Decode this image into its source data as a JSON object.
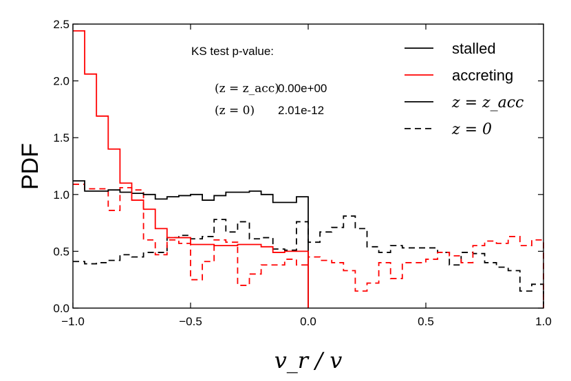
{
  "chart_data": {
    "type": "line",
    "title": "",
    "xlabel": "v_r / v",
    "ylabel": "PDF",
    "xlim": [
      -1.0,
      1.0
    ],
    "ylim": [
      0.0,
      2.5
    ],
    "xticks": [
      -1.0,
      -0.5,
      0.0,
      0.5,
      1.0
    ],
    "xtick_labels": [
      "−1.0",
      "−0.5",
      "0.0",
      "0.5",
      "1.0"
    ],
    "yticks": [
      0.0,
      0.5,
      1.0,
      1.5,
      2.0,
      2.5
    ],
    "ytick_labels": [
      "0.0",
      "0.5",
      "1.0",
      "1.5",
      "2.0",
      "2.5"
    ],
    "grid": false,
    "series": [
      {
        "name": "stalled z=z_acc",
        "color": "#000000",
        "dash": "solid",
        "edges": [
          -1.0,
          -0.95,
          -0.9,
          -0.85,
          -0.8,
          -0.75,
          -0.7,
          -0.65,
          -0.6,
          -0.55,
          -0.5,
          -0.45,
          -0.4,
          -0.35,
          -0.3,
          -0.25,
          -0.2,
          -0.15,
          -0.1,
          -0.05,
          0.0
        ],
        "values": [
          1.12,
          1.03,
          1.03,
          1.04,
          1.02,
          1.01,
          1.0,
          0.96,
          0.98,
          0.99,
          1.0,
          0.95,
          0.99,
          1.02,
          1.02,
          1.03,
          1.0,
          0.93,
          0.93,
          0.98
        ]
      },
      {
        "name": "accreting z=z_acc",
        "color": "#ff0000",
        "dash": "solid",
        "edges": [
          -1.0,
          -0.95,
          -0.9,
          -0.85,
          -0.8,
          -0.75,
          -0.7,
          -0.65,
          -0.6,
          -0.55,
          -0.5,
          -0.45,
          -0.4,
          -0.35,
          -0.3,
          -0.25,
          -0.2,
          -0.15,
          -0.1,
          -0.05,
          0.0
        ],
        "values": [
          2.44,
          2.06,
          1.69,
          1.4,
          1.1,
          0.95,
          0.87,
          0.7,
          0.62,
          0.62,
          0.56,
          0.56,
          0.55,
          0.55,
          0.56,
          0.56,
          0.54,
          0.49,
          0.5,
          0.5
        ]
      },
      {
        "name": "stalled z=0",
        "color": "#000000",
        "dash": "dashed",
        "edges": [
          -1.0,
          -0.95,
          -0.9,
          -0.85,
          -0.8,
          -0.75,
          -0.7,
          -0.65,
          -0.6,
          -0.55,
          -0.5,
          -0.45,
          -0.4,
          -0.35,
          -0.3,
          -0.25,
          -0.2,
          -0.15,
          -0.1,
          -0.05,
          0.0,
          0.05,
          0.1,
          0.15,
          0.2,
          0.25,
          0.3,
          0.35,
          0.4,
          0.45,
          0.5,
          0.55,
          0.6,
          0.65,
          0.7,
          0.75,
          0.8,
          0.85,
          0.9,
          0.95,
          1.0
        ],
        "values": [
          0.41,
          0.39,
          0.4,
          0.42,
          0.47,
          0.45,
          0.49,
          0.49,
          0.62,
          0.64,
          0.61,
          0.63,
          0.78,
          0.67,
          0.76,
          0.61,
          0.62,
          0.52,
          0.51,
          0.76,
          0.58,
          0.67,
          0.71,
          0.81,
          0.7,
          0.54,
          0.49,
          0.55,
          0.53,
          0.53,
          0.53,
          0.49,
          0.38,
          0.49,
          0.48,
          0.4,
          0.36,
          0.33,
          0.15,
          0.21
        ]
      },
      {
        "name": "accreting z=0",
        "color": "#ff0000",
        "dash": "dashed",
        "edges": [
          -1.0,
          -0.95,
          -0.9,
          -0.85,
          -0.8,
          -0.75,
          -0.7,
          -0.65,
          -0.6,
          -0.55,
          -0.5,
          -0.45,
          -0.4,
          -0.35,
          -0.3,
          -0.25,
          -0.2,
          -0.15,
          -0.1,
          -0.05,
          0.0,
          0.05,
          0.1,
          0.15,
          0.2,
          0.25,
          0.3,
          0.35,
          0.4,
          0.45,
          0.5,
          0.55,
          0.6,
          0.65,
          0.7,
          0.75,
          0.8,
          0.85,
          0.9,
          0.95,
          1.0
        ],
        "values": [
          1.09,
          1.05,
          1.05,
          0.86,
          1.06,
          1.04,
          0.6,
          0.47,
          0.6,
          0.57,
          0.25,
          0.41,
          0.6,
          0.58,
          0.2,
          0.3,
          0.38,
          0.38,
          0.43,
          0.38,
          0.45,
          0.42,
          0.4,
          0.33,
          0.15,
          0.22,
          0.4,
          0.26,
          0.4,
          0.4,
          0.43,
          0.49,
          0.46,
          0.4,
          0.55,
          0.59,
          0.57,
          0.63,
          0.55,
          0.6
        ]
      }
    ],
    "legend": {
      "placement": "top-right",
      "entries": [
        {
          "label": "stalled",
          "color": "#000000",
          "dash": "solid"
        },
        {
          "label": "accreting",
          "color": "#ff0000",
          "dash": "solid"
        },
        {
          "label": "z = z_acc",
          "color": "#000000",
          "dash": "solid"
        },
        {
          "label": "z = 0",
          "color": "#000000",
          "dash": "dashed"
        }
      ]
    },
    "annotation": {
      "heading": "KS test p-value:",
      "rows": [
        {
          "label": "(z = z_acc)",
          "value": "0.00e+00"
        },
        {
          "label": "(z = 0)",
          "value": "2.01e-12"
        }
      ]
    }
  }
}
